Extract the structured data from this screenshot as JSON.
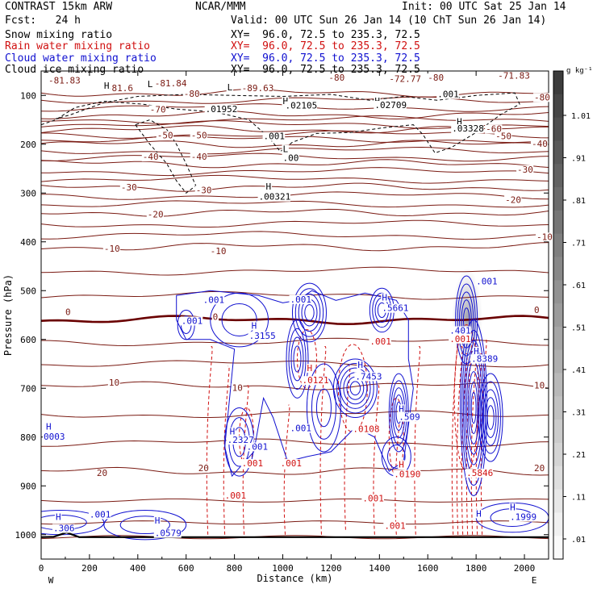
{
  "header": {
    "model": "CONTRAST 15km ARW",
    "forecast": "Fcst:   24 h",
    "center": "NCAR/MMM",
    "init": "Init: 00 UTC Sat 25 Jan 14",
    "valid": "Valid: 00 UTC Sun 26 Jan 14 (10 ChT Sun 26 Jan 14)",
    "fields": [
      {
        "name": "Snow mixing ratio",
        "xy": "XY=  96.0, 72.5 to 235.3, 72.5",
        "color": "#000000"
      },
      {
        "name": "Rain water mixing ratio",
        "xy": "XY=  96.0, 72.5 to 235.3, 72.5",
        "color": "#d01010"
      },
      {
        "name": "Cloud water mixing ratio",
        "xy": "XY=  96.0, 72.5 to 235.3, 72.5",
        "color": "#1010d0"
      },
      {
        "name": "Cloud ice mixing ratio",
        "xy": "XY=  96.0, 72.5 to 235.3, 72.5",
        "color": "#000000"
      }
    ]
  },
  "chart_data": {
    "type": "heatmap",
    "xlabel": "Distance (km)",
    "ylabel": "Pressure (hPa)",
    "x_ticks": [
      0,
      200,
      400,
      600,
      800,
      1000,
      1200,
      1400,
      1600,
      1800,
      2000
    ],
    "y_ticks": [
      100,
      200,
      300,
      400,
      500,
      600,
      700,
      800,
      900,
      1000
    ],
    "xlim": [
      0,
      2100
    ],
    "ylim": [
      50,
      1050
    ],
    "x_end_labels": {
      "left": "W",
      "right": "E"
    },
    "colorbar": {
      "unit": "g kg⁻¹",
      "ticks": [
        "1.01",
        ".91",
        ".81",
        ".71",
        ".61",
        ".51",
        ".41",
        ".31",
        ".21",
        ".11",
        ".01"
      ]
    },
    "temperature_isotherms": {
      "color": "#7a1a12",
      "zero_color": "#6a0000",
      "levels": [
        {
          "label": "-80",
          "p": 95
        },
        {
          "label": "-70",
          "p": 140
        },
        {
          "label": "-60",
          "p": 170
        },
        {
          "label": "-50",
          "p": 200
        },
        {
          "label": "-40",
          "p": 240
        },
        {
          "label": "-30",
          "p": 288
        },
        {
          "label": "-20",
          "p": 340
        },
        {
          "label": "-10",
          "p": 410
        },
        {
          "label": "0",
          "p": 560,
          "bold": true
        },
        {
          "label": "10",
          "p": 695
        },
        {
          "label": "20",
          "p": 870
        }
      ],
      "contour_labels": [
        {
          "text": "-81.83",
          "x": 30,
          "p": 76
        },
        {
          "text": "-81.6",
          "x": 270,
          "p": 91
        },
        {
          "text": "-81.84",
          "x": 470,
          "p": 81
        },
        {
          "text": "-89.63",
          "x": 830,
          "p": 91
        },
        {
          "text": "-72.77",
          "x": 1440,
          "p": 72
        },
        {
          "text": "-71.83",
          "x": 1890,
          "p": 66
        },
        {
          "text": "-80",
          "x": 590,
          "p": 103
        },
        {
          "text": "-80",
          "x": 1190,
          "p": 70
        },
        {
          "text": "-80",
          "x": 1600,
          "p": 70
        },
        {
          "text": "-80",
          "x": 2040,
          "p": 110
        },
        {
          "text": "-70",
          "x": 450,
          "p": 135
        },
        {
          "text": "-60",
          "x": 1840,
          "p": 175
        },
        {
          "text": "-50",
          "x": 480,
          "p": 188
        },
        {
          "text": "-50",
          "x": 620,
          "p": 188
        },
        {
          "text": "-50",
          "x": 1880,
          "p": 190
        },
        {
          "text": "-40",
          "x": 420,
          "p": 232
        },
        {
          "text": "-40",
          "x": 620,
          "p": 232
        },
        {
          "text": "-40",
          "x": 2030,
          "p": 205
        },
        {
          "text": "-30",
          "x": 330,
          "p": 295
        },
        {
          "text": "-30",
          "x": 640,
          "p": 300
        },
        {
          "text": "-30",
          "x": 1970,
          "p": 258
        },
        {
          "text": "-20",
          "x": 440,
          "p": 350
        },
        {
          "text": "-20",
          "x": 1920,
          "p": 320
        },
        {
          "text": "-10",
          "x": 260,
          "p": 420
        },
        {
          "text": "-10",
          "x": 700,
          "p": 425
        },
        {
          "text": "-10",
          "x": 2050,
          "p": 396
        },
        {
          "text": "0",
          "x": 100,
          "p": 550
        },
        {
          "text": "0",
          "x": 710,
          "p": 560
        },
        {
          "text": "0",
          "x": 2040,
          "p": 546
        },
        {
          "text": "10",
          "x": 280,
          "p": 695
        },
        {
          "text": "10",
          "x": 790,
          "p": 705
        },
        {
          "text": "10",
          "x": 2040,
          "p": 700
        },
        {
          "text": "20",
          "x": 230,
          "p": 880
        },
        {
          "text": "20",
          "x": 650,
          "p": 870
        },
        {
          "text": "20",
          "x": 2040,
          "p": 870
        }
      ]
    },
    "snow": {
      "color": "#000000",
      "labels": [
        {
          "text": "H",
          "x": 260,
          "p": 86
        },
        {
          "text": "L",
          "x": 440,
          "p": 83
        },
        {
          "text": "L",
          "x": 770,
          "p": 90
        },
        {
          "text": "H",
          "x": 1000,
          "p": 118
        },
        {
          "text": "H",
          "x": 1380,
          "p": 118
        },
        {
          "text": "H",
          "x": 1720,
          "p": 160
        },
        {
          "text": ".001",
          "x": 1640,
          "p": 104
        },
        {
          "text": ".001",
          "x": 920,
          "p": 190
        },
        {
          "text": "L",
          "x": 1000,
          "p": 216
        },
        {
          "text": ".00",
          "x": 1000,
          "p": 234
        },
        {
          "text": "H",
          "x": 930,
          "p": 293
        },
        {
          "text": ".00321",
          "x": 900,
          "p": 314
        },
        {
          "text": ".01952",
          "x": 680,
          "p": 134
        },
        {
          "text": ".02105",
          "x": 1010,
          "p": 127
        },
        {
          "text": ".02709",
          "x": 1380,
          "p": 126
        },
        {
          "text": ".03328",
          "x": 1700,
          "p": 174
        }
      ]
    },
    "rain_water": {
      "color": "#d01010",
      "labels": [
        {
          "text": "H",
          "x": 1100,
          "p": 665
        },
        {
          "text": ".0121",
          "x": 1080,
          "p": 690
        },
        {
          "text": ".001",
          "x": 1360,
          "p": 610
        },
        {
          "text": ".0108",
          "x": 1290,
          "p": 790
        },
        {
          "text": "H",
          "x": 1480,
          "p": 862
        },
        {
          "text": ".0190",
          "x": 1460,
          "p": 882
        },
        {
          "text": ".001",
          "x": 1330,
          "p": 932
        },
        {
          "text": ".001",
          "x": 1420,
          "p": 988
        },
        {
          "text": ".001",
          "x": 830,
          "p": 860
        },
        {
          "text": ".001",
          "x": 990,
          "p": 860
        },
        {
          "text": ".001",
          "x": 760,
          "p": 926
        },
        {
          "text": ".001",
          "x": 1690,
          "p": 605
        },
        {
          "text": ".5846",
          "x": 1760,
          "p": 880
        }
      ]
    },
    "cloud_water": {
      "color": "#1010d0",
      "labels": [
        {
          "text": ".001",
          "x": 670,
          "p": 525
        },
        {
          "text": ".001",
          "x": 1030,
          "p": 524
        },
        {
          "text": ".001",
          "x": 1800,
          "p": 487
        },
        {
          "text": ".001",
          "x": 1030,
          "p": 788
        },
        {
          "text": ".001",
          "x": 850,
          "p": 826
        },
        {
          "text": "H",
          "x": 870,
          "p": 578
        },
        {
          "text": ".3155",
          "x": 860,
          "p": 599
        },
        {
          "text": ".001",
          "x": 580,
          "p": 568
        },
        {
          "text": "H",
          "x": 1410,
          "p": 520
        },
        {
          "text": ".5661",
          "x": 1410,
          "p": 542
        },
        {
          "text": "H",
          "x": 1310,
          "p": 658
        },
        {
          "text": ".7453",
          "x": 1300,
          "p": 682
        },
        {
          "text": "H",
          "x": 1480,
          "p": 748
        },
        {
          "text": ".509",
          "x": 1480,
          "p": 765
        },
        {
          "text": "H",
          "x": 780,
          "p": 795
        },
        {
          "text": ".2327",
          "x": 770,
          "p": 812
        },
        {
          "text": ".401",
          "x": 1690,
          "p": 588
        },
        {
          "text": "H",
          "x": 1790,
          "p": 630
        },
        {
          "text": ".8389",
          "x": 1780,
          "p": 646
        },
        {
          "text": "H",
          "x": 20,
          "p": 785
        },
        {
          "text": "0003",
          "x": 10,
          "p": 805
        },
        {
          "text": ".001",
          "x": 200,
          "p": 965
        },
        {
          "text": "H",
          "x": 60,
          "p": 970
        },
        {
          "text": ".306",
          "x": 50,
          "p": 993
        },
        {
          "text": "H",
          "x": 470,
          "p": 977
        },
        {
          "text": ".0579",
          "x": 470,
          "p": 1003
        },
        {
          "text": "H",
          "x": 1940,
          "p": 950
        },
        {
          "text": ".1999",
          "x": 1940,
          "p": 970
        },
        {
          "text": "H",
          "x": 1800,
          "p": 963
        }
      ]
    },
    "cloud_ice": {
      "unit": "g kg⁻¹",
      "max_region_x": [
        1700,
        1800
      ],
      "max_region_p": [
        470,
        680
      ]
    }
  }
}
